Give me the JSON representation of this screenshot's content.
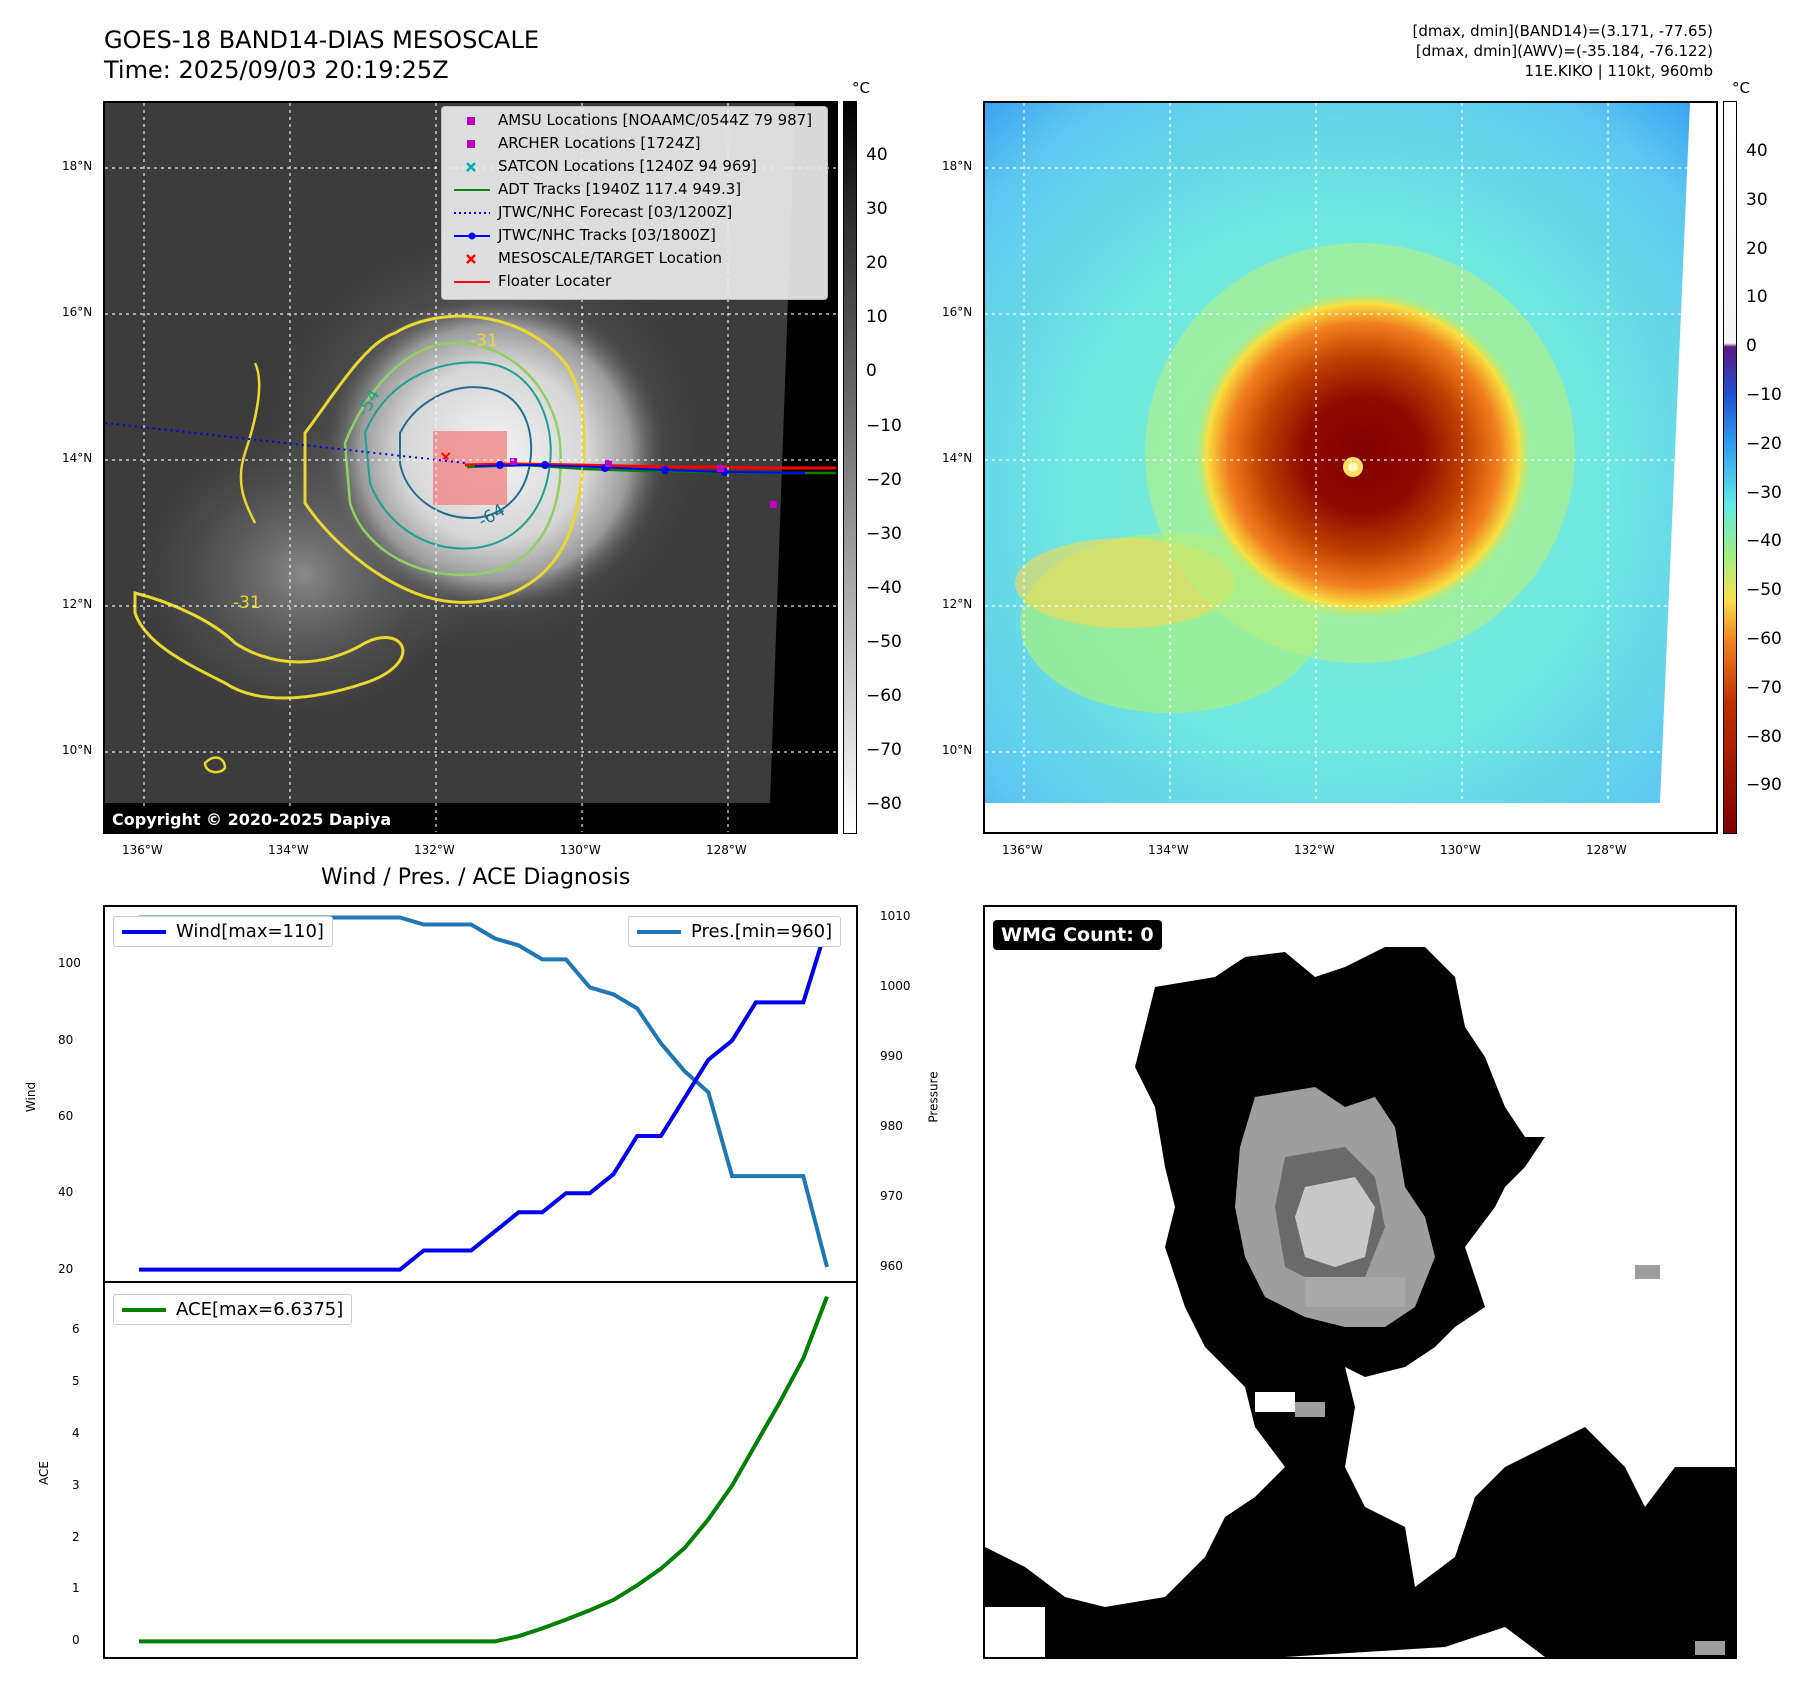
{
  "header": {
    "title_line1": "GOES-18 BAND14-DIAS MESOSCALE",
    "title_line2": "Time: 2025/09/03 20:19:25Z",
    "right_line1": "[dmax, dmin](BAND14)=(3.171, -77.65)",
    "right_line2": "[dmax, dmin](AWV)=(-35.184, -76.122)",
    "right_line3": "11E.KIKO | 110kt, 960mb"
  },
  "map_axes": {
    "lat_labels": [
      "18°N",
      "16°N",
      "14°N",
      "12°N",
      "10°N"
    ],
    "lon_labels": [
      "136°W",
      "134°W",
      "132°W",
      "130°W",
      "128°W"
    ]
  },
  "ir_panel": {
    "colorbar_unit": "°C",
    "colorbar_ticks": [
      "40",
      "30",
      "20",
      "10",
      "0",
      "−10",
      "−20",
      "−30",
      "−40",
      "−50",
      "−60",
      "−70",
      "−80"
    ],
    "contour_labels": [
      "-31",
      "-54",
      "-64",
      "-31"
    ],
    "copyright": "Copyright © 2020-2025 Dapiya",
    "legend": [
      {
        "label": "AMSU Locations [NOAAMC/0544Z 79 987]",
        "symbol": "square",
        "color": "#c000c0"
      },
      {
        "label": "ARCHER Locations [1724Z]",
        "symbol": "square",
        "color": "#c000c0"
      },
      {
        "label": "SATCON Locations [1240Z 94 969]",
        "symbol": "x",
        "color": "#00b0b0"
      },
      {
        "label": "ADT Tracks [1940Z 117.4 949.3]",
        "symbol": "line",
        "color": "#008000"
      },
      {
        "label": "JTWC/NHC Forecast [03/1200Z]",
        "symbol": "dotted",
        "color": "#0000ff"
      },
      {
        "label": "JTWC/NHC Tracks [03/1800Z]",
        "symbol": "line-dot",
        "color": "#0000ff"
      },
      {
        "label": "MESOSCALE/TARGET Location",
        "symbol": "x",
        "color": "#ff0000"
      },
      {
        "label": "Floater Locater",
        "symbol": "line",
        "color": "#ff0000"
      }
    ]
  },
  "color_panel": {
    "colorbar_unit": "°C",
    "colorbar_ticks": [
      "40",
      "30",
      "20",
      "10",
      "0",
      "−10",
      "−20",
      "−30",
      "−40",
      "−50",
      "−60",
      "−70",
      "−80",
      "−90"
    ]
  },
  "wmg_panel": {
    "label": "WMG Count: 0"
  },
  "chart_data": [
    {
      "type": "line",
      "title": "Wind / Pres. / ACE Diagnosis",
      "xlabel": "",
      "ylabel": "Wind",
      "y2label": "Pressure",
      "ylim": [
        17,
        115
      ],
      "y2lim": [
        958,
        1011.5
      ],
      "yticks": [
        "100",
        "80",
        "60",
        "40",
        "20"
      ],
      "y2ticks": [
        "1010",
        "1000",
        "990",
        "980",
        "970",
        "960"
      ],
      "series": [
        {
          "name": "Wind[max=110]",
          "color": "#0000ee",
          "values": [
            20,
            20,
            20,
            20,
            20,
            20,
            20,
            20,
            20,
            20,
            20,
            20,
            25,
            25,
            25,
            30,
            35,
            35,
            40,
            40,
            45,
            55,
            55,
            65,
            75,
            80,
            90,
            90,
            90,
            110
          ]
        },
        {
          "name": "Pres.[min=960]",
          "color": "#1f77b4",
          "values": [
            1010,
            1010,
            1010,
            1010,
            1010,
            1010,
            1010,
            1010,
            1010,
            1010,
            1010,
            1010,
            1009,
            1009,
            1009,
            1007,
            1006,
            1004,
            1004,
            1000,
            999,
            997,
            992,
            988,
            985,
            973,
            973,
            973,
            973,
            960
          ]
        }
      ]
    },
    {
      "type": "line",
      "title": "",
      "xlabel": "",
      "ylabel": "ACE",
      "ylim": [
        -0.3,
        6.9
      ],
      "yticks": [
        "6",
        "5",
        "4",
        "3",
        "2",
        "1",
        "0"
      ],
      "series": [
        {
          "name": "ACE[max=6.6375]",
          "color": "#008000",
          "values": [
            0,
            0,
            0,
            0,
            0,
            0,
            0,
            0,
            0,
            0,
            0,
            0,
            0,
            0,
            0,
            0,
            0.1,
            0.25,
            0.42,
            0.6,
            0.8,
            1.08,
            1.4,
            1.8,
            2.35,
            3.0,
            3.8,
            4.6,
            5.45,
            6.6375
          ]
        }
      ]
    }
  ]
}
